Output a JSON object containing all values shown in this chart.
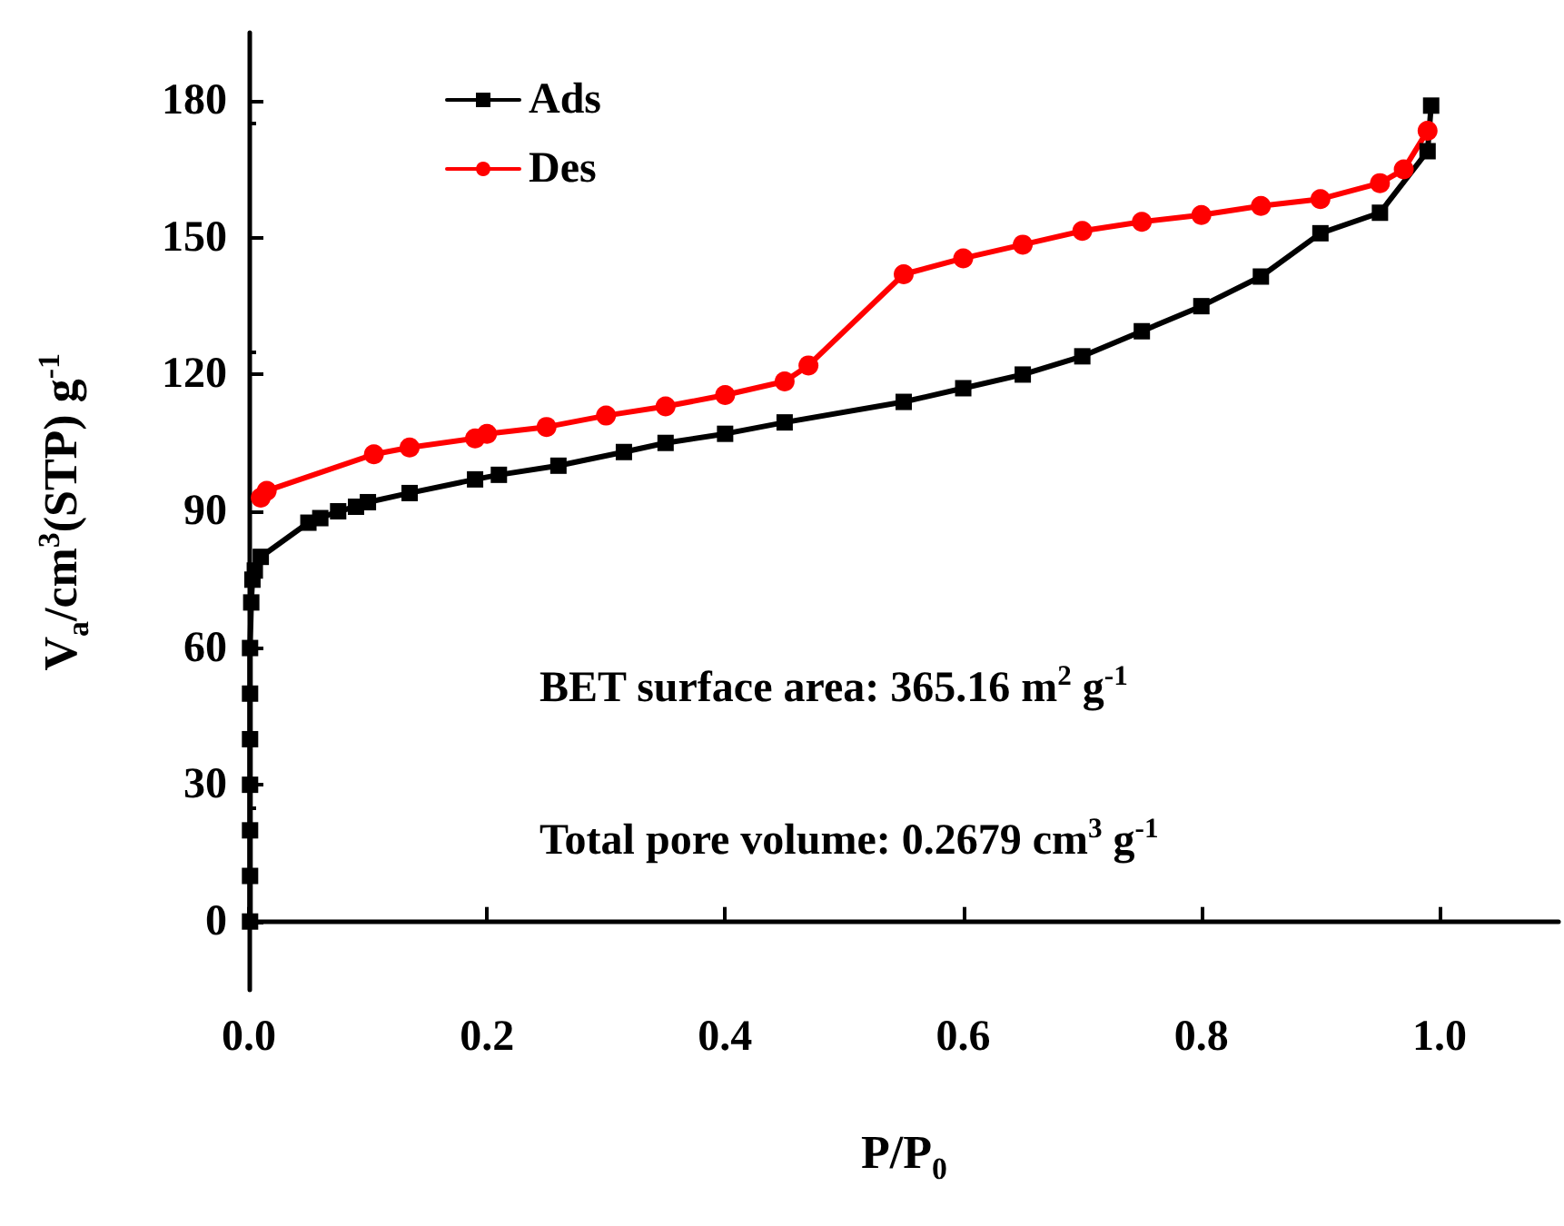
{
  "chart_data": {
    "type": "line",
    "xlabel": "P/P$_{0}$",
    "ylabel": "V$_{a}$/cm$^{3}$(STP) g$^{-1}$",
    "xlim": [
      0,
      1.1
    ],
    "xticks": [
      {
        "value": 0,
        "label": "0.0"
      },
      {
        "value": 0.2,
        "label": "0.2"
      },
      {
        "value": 0.4,
        "label": "0.4"
      },
      {
        "value": 0.6,
        "label": "0.6"
      },
      {
        "value": 0.8,
        "label": "0.8"
      },
      {
        "value": 1,
        "label": "1.0"
      }
    ],
    "ylim": [
      -15,
      195
    ],
    "yticks": [
      0,
      30,
      60,
      90,
      120,
      150,
      180
    ],
    "grid": false,
    "legend": "top left",
    "line_style": "solid",
    "series": [
      {
        "name": "Ads",
        "color": "#000000",
        "marker": "square",
        "x": [
          0.001,
          0.001,
          0.001,
          0.001,
          0.001,
          0.001,
          0.001,
          0.002,
          0.003,
          0.005,
          0.01,
          0.05,
          0.06,
          0.075,
          0.09,
          0.1,
          0.135,
          0.19,
          0.21,
          0.26,
          0.315,
          0.35,
          0.4,
          0.45,
          0.55,
          0.6,
          0.65,
          0.7,
          0.75,
          0.8,
          0.85,
          0.9,
          0.95,
          0.99,
          0.993
        ],
        "values": [
          0,
          10,
          20,
          30,
          40,
          50,
          60,
          70,
          75,
          77,
          80,
          87.5,
          88.5,
          90,
          91,
          92,
          94,
          97,
          98,
          100,
          103,
          105,
          107,
          109.5,
          114,
          117,
          120,
          124,
          129.5,
          135,
          141.5,
          151,
          155.5,
          169,
          179
        ]
      },
      {
        "name": "Des",
        "color": "#ff0000",
        "marker": "circle",
        "x": [
          0.99,
          0.97,
          0.95,
          0.9,
          0.85,
          0.8,
          0.75,
          0.7,
          0.65,
          0.6,
          0.55,
          0.47,
          0.45,
          0.4,
          0.35,
          0.3,
          0.25,
          0.2,
          0.19,
          0.135,
          0.105,
          0.015,
          0.01
        ],
        "values": [
          173.5,
          165,
          162,
          158.5,
          157,
          155,
          153.5,
          151.5,
          148.5,
          145.5,
          142,
          122,
          118.5,
          115.5,
          113,
          111,
          108.5,
          107,
          106,
          104,
          102.5,
          94.5,
          93
        ]
      }
    ],
    "annotations": [
      "BET surface area: 365.16 m$^{2}$ g$^{-1}$",
      "Total pore volume: 0.2679 cm$^{3}$ g$^{-1}$"
    ]
  }
}
